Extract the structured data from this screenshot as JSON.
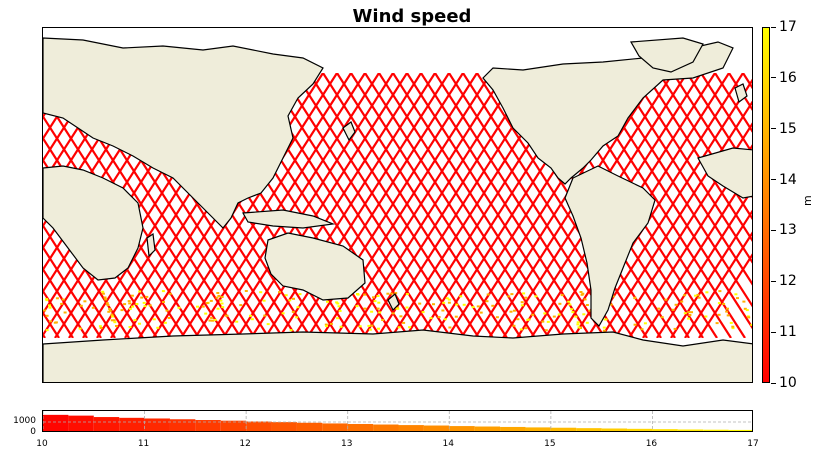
{
  "title": "Wind speed",
  "colorbar": {
    "label": "m",
    "ticks": [
      "10",
      "11",
      "12",
      "13",
      "14",
      "15",
      "16",
      "17"
    ],
    "min": 10,
    "max": 17,
    "colors": [
      "#ff0000",
      "#ff7f00",
      "#ffff00"
    ]
  },
  "map": {
    "land_color": "#efedda",
    "ocean_color": "#ffffff",
    "track_color": "#ff0000",
    "coastline_color": "#000000"
  },
  "chart_data": {
    "type": "histogram",
    "xlim": [
      10,
      17
    ],
    "x_ticks": [
      "10",
      "11",
      "12",
      "13",
      "14",
      "15",
      "16",
      "17"
    ],
    "y_ticks": [
      "0",
      "1000"
    ],
    "bin_edges": [
      10,
      10.25,
      10.5,
      10.75,
      11,
      11.25,
      11.5,
      11.75,
      12,
      12.25,
      12.5,
      12.75,
      13,
      13.25,
      13.5,
      13.75,
      14,
      14.25,
      14.5,
      14.75,
      15,
      15.25,
      15.5,
      15.75,
      16,
      16.25,
      16.5,
      16.75,
      17
    ],
    "counts": [
      1650,
      1580,
      1450,
      1380,
      1320,
      1250,
      1180,
      1120,
      1050,
      990,
      930,
      870,
      820,
      770,
      720,
      680,
      630,
      590,
      550,
      510,
      480,
      440,
      410,
      380,
      350,
      320,
      300,
      280
    ],
    "grid": true
  }
}
